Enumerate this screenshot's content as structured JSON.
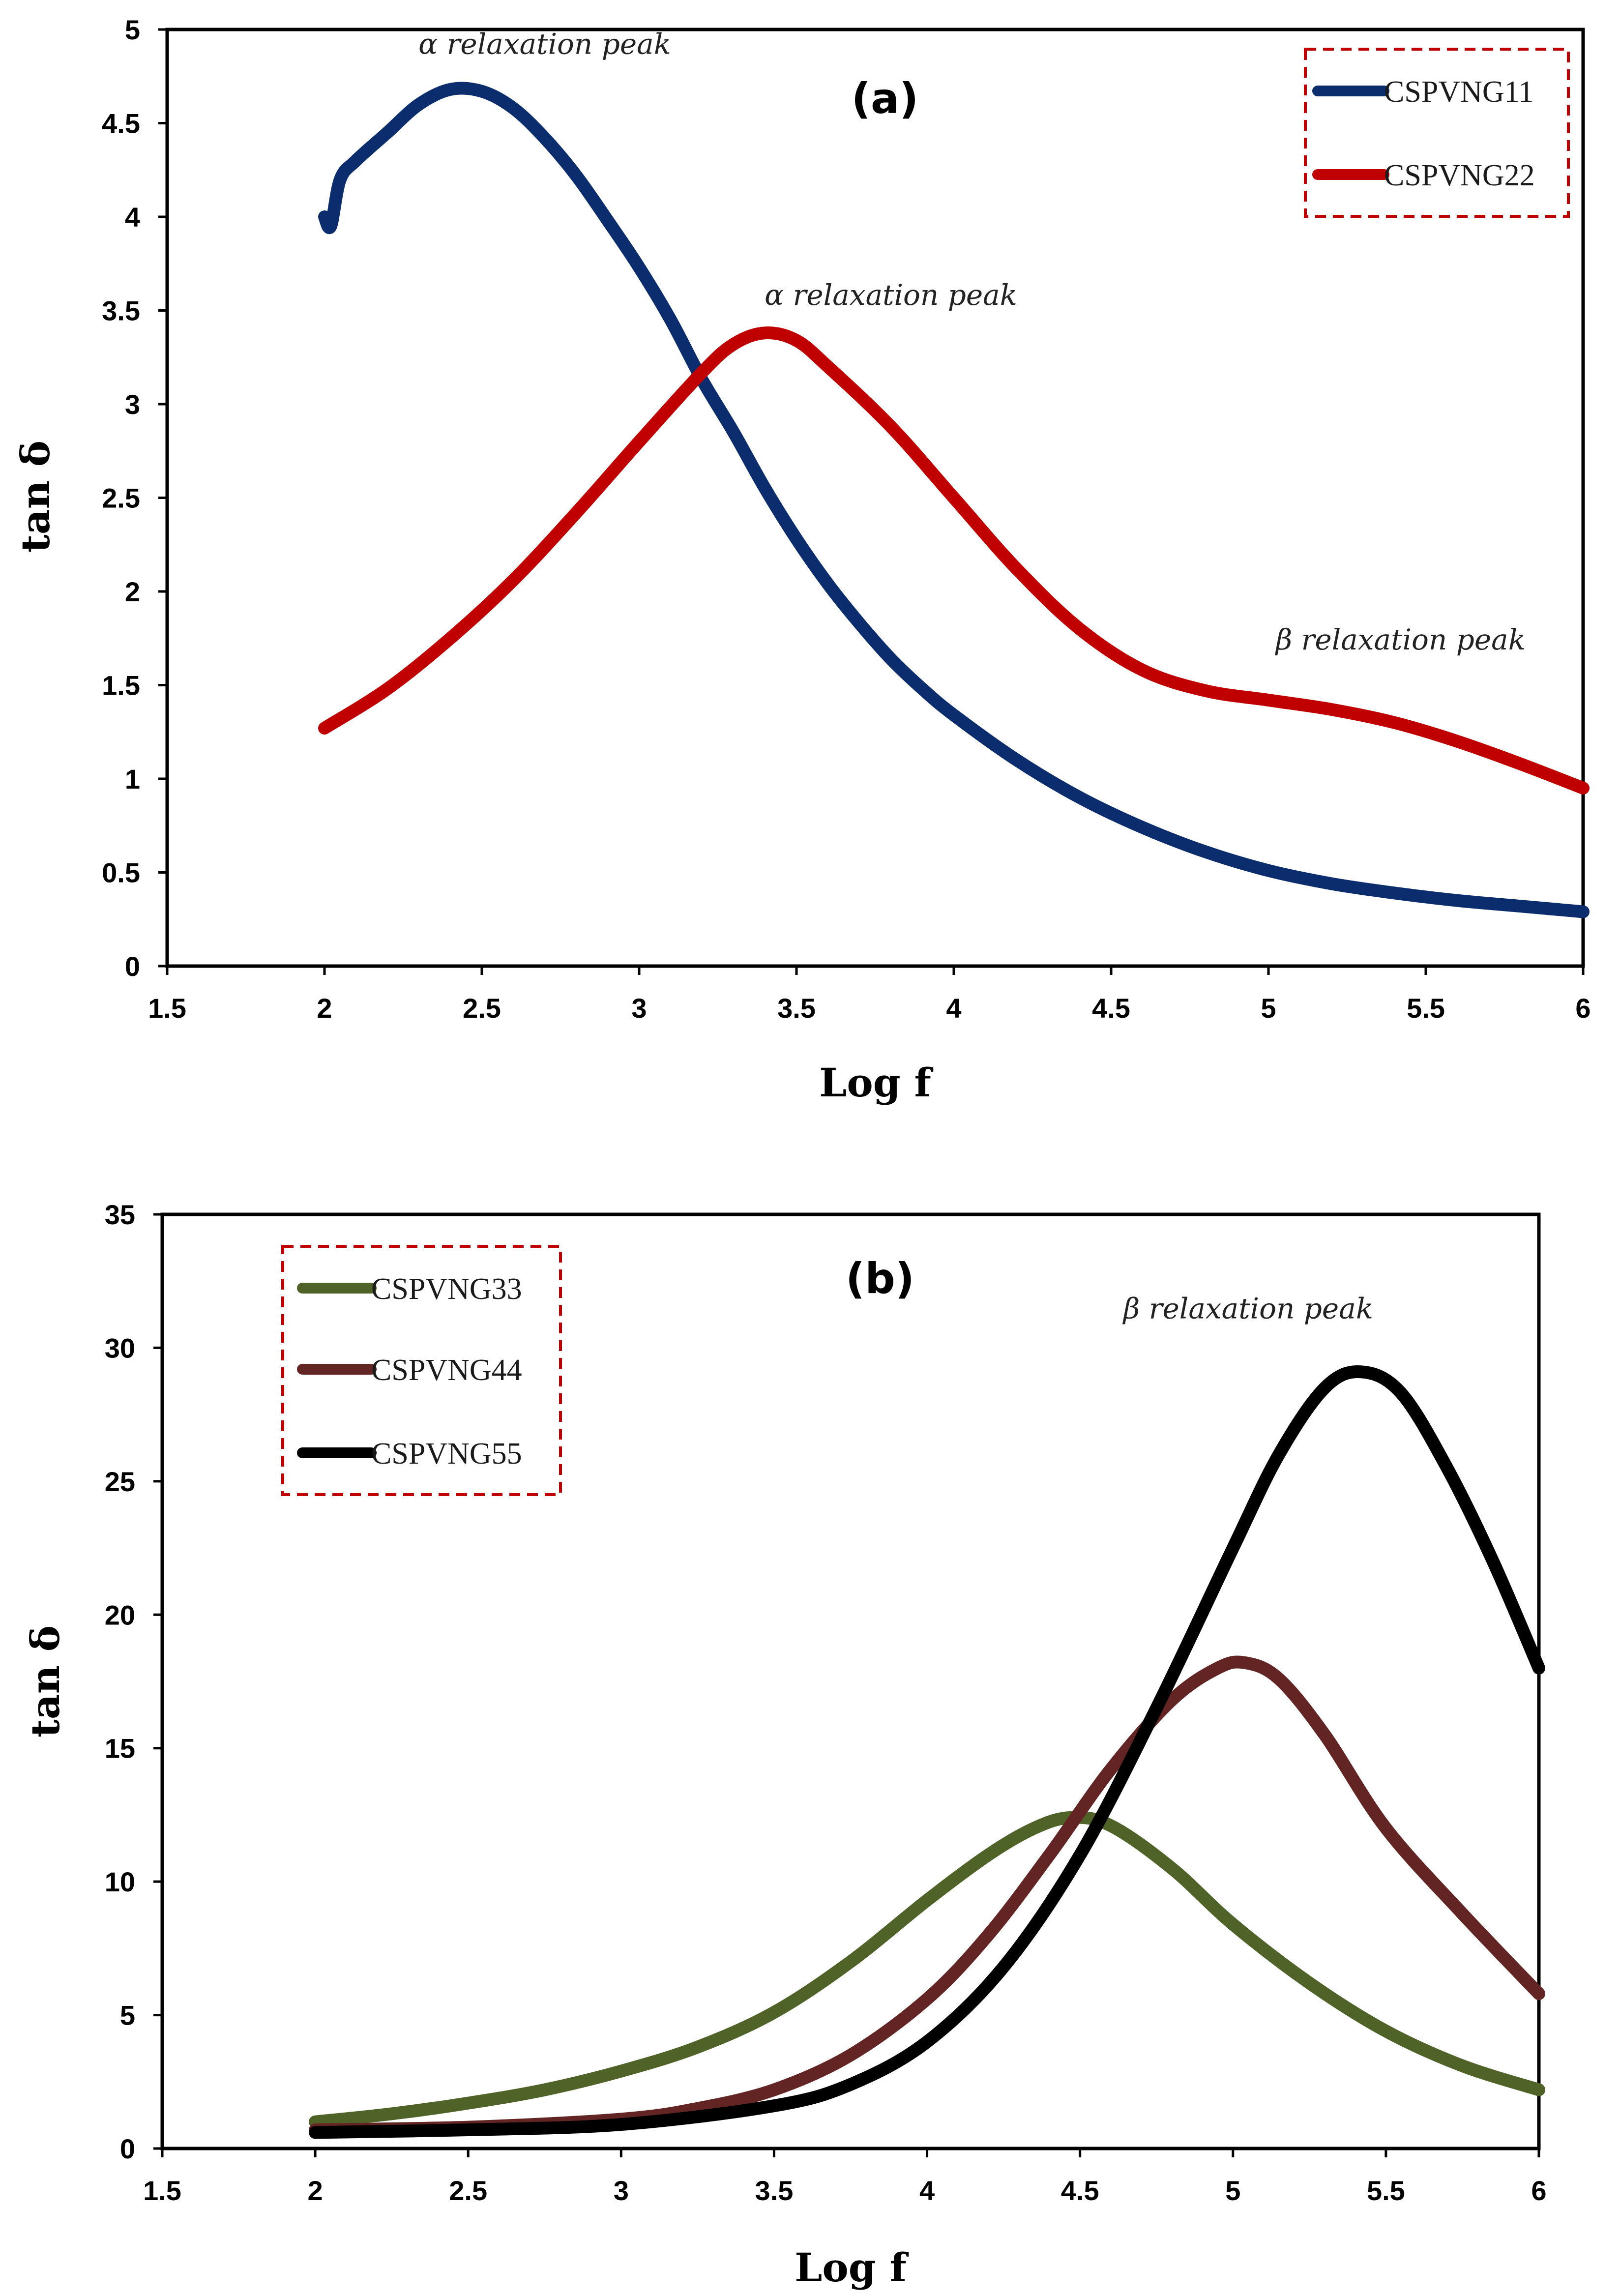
{
  "chart_data": [
    {
      "type": "line",
      "title": "(a)",
      "xlabel": "Log f",
      "ylabel": "tan δ",
      "xlim": [
        1.5,
        6
      ],
      "ylim": [
        0,
        5
      ],
      "xticks": [
        "1.5",
        "2",
        "2.5",
        "3",
        "3.5",
        "4",
        "4.5",
        "5",
        "5.5",
        "6"
      ],
      "yticks": [
        "0",
        "0.5",
        "1",
        "1.5",
        "2",
        "2.5",
        "3",
        "3.5",
        "4",
        "4.5",
        "5"
      ],
      "legend_position": "top-right",
      "series": [
        {
          "name": "CSPVNG11",
          "color": "#0b2d6e",
          "x": [
            2.0,
            2.02,
            2.05,
            2.1,
            2.2,
            2.3,
            2.4,
            2.5,
            2.6,
            2.7,
            2.8,
            2.9,
            3.0,
            3.1,
            3.2,
            3.3,
            3.4,
            3.5,
            3.6,
            3.7,
            3.8,
            3.9,
            4.0,
            4.2,
            4.4,
            4.6,
            4.8,
            5.0,
            5.2,
            5.4,
            5.6,
            5.8,
            6.0
          ],
          "values": [
            4.0,
            3.95,
            4.2,
            4.3,
            4.45,
            4.6,
            4.68,
            4.67,
            4.58,
            4.42,
            4.22,
            3.98,
            3.73,
            3.45,
            3.13,
            2.85,
            2.55,
            2.28,
            2.04,
            1.83,
            1.64,
            1.48,
            1.34,
            1.1,
            0.9,
            0.74,
            0.61,
            0.51,
            0.44,
            0.39,
            0.35,
            0.32,
            0.29
          ]
        },
        {
          "name": "CSPVNG22",
          "color": "#c00000",
          "x": [
            2.0,
            2.2,
            2.4,
            2.6,
            2.8,
            3.0,
            3.2,
            3.3,
            3.4,
            3.5,
            3.6,
            3.8,
            4.0,
            4.2,
            4.4,
            4.6,
            4.8,
            5.0,
            5.2,
            5.4,
            5.6,
            5.8,
            6.0
          ],
          "values": [
            1.27,
            1.48,
            1.75,
            2.06,
            2.42,
            2.8,
            3.17,
            3.32,
            3.38,
            3.34,
            3.2,
            2.88,
            2.5,
            2.12,
            1.8,
            1.58,
            1.47,
            1.42,
            1.37,
            1.3,
            1.2,
            1.08,
            0.95
          ]
        }
      ],
      "annotations": [
        {
          "text": "α relaxation peak",
          "x": 2.7,
          "y": 4.87
        },
        {
          "text": "α relaxation peak",
          "x": 3.8,
          "y": 3.53
        },
        {
          "text": "β relaxation peak",
          "x": 5.42,
          "y": 1.69
        }
      ]
    },
    {
      "type": "line",
      "title": "(b)",
      "xlabel": "Log f",
      "ylabel": "tan δ",
      "xlim": [
        1.5,
        6
      ],
      "ylim": [
        0,
        35
      ],
      "xticks": [
        "1.5",
        "2",
        "2.5",
        "3",
        "3.5",
        "4",
        "4.5",
        "5",
        "5.5",
        "6"
      ],
      "yticks": [
        "0",
        "5",
        "10",
        "15",
        "20",
        "25",
        "30",
        "35"
      ],
      "legend_position": "top-left",
      "series": [
        {
          "name": "CSPVNG33",
          "color": "#4f6228",
          "x": [
            2.0,
            2.25,
            2.5,
            2.75,
            3.0,
            3.25,
            3.5,
            3.75,
            4.0,
            4.2,
            4.35,
            4.47,
            4.6,
            4.8,
            5.0,
            5.25,
            5.5,
            5.75,
            6.0
          ],
          "values": [
            1.0,
            1.3,
            1.7,
            2.2,
            2.9,
            3.8,
            5.1,
            7.0,
            9.3,
            11.0,
            12.0,
            12.4,
            12.1,
            10.5,
            8.4,
            6.2,
            4.4,
            3.1,
            2.2
          ]
        },
        {
          "name": "CSPVNG44",
          "color": "#632523",
          "x": [
            2.0,
            2.5,
            3.0,
            3.25,
            3.5,
            3.75,
            4.0,
            4.2,
            4.4,
            4.6,
            4.8,
            4.95,
            5.04,
            5.15,
            5.3,
            5.5,
            5.75,
            6.0
          ],
          "values": [
            0.7,
            0.8,
            1.1,
            1.5,
            2.2,
            3.5,
            5.6,
            8.0,
            11.0,
            14.2,
            16.8,
            18.0,
            18.2,
            17.6,
            15.5,
            12.0,
            8.8,
            5.8
          ]
        },
        {
          "name": "CSPVNG55",
          "color": "#000000",
          "x": [
            2.0,
            2.5,
            3.0,
            3.5,
            3.75,
            4.0,
            4.25,
            4.5,
            4.75,
            5.0,
            5.15,
            5.3,
            5.42,
            5.55,
            5.7,
            5.85,
            6.0
          ],
          "values": [
            0.6,
            0.7,
            0.9,
            1.6,
            2.4,
            4.0,
            6.8,
            11.0,
            16.5,
            22.5,
            26.0,
            28.5,
            29.1,
            28.3,
            25.5,
            22.0,
            18.0
          ]
        }
      ],
      "annotations": [
        {
          "text": "β relaxation peak",
          "x": 5.05,
          "y": 31.1
        }
      ]
    }
  ]
}
